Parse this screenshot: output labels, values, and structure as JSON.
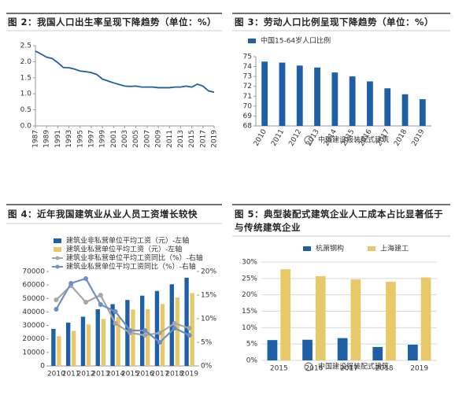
{
  "chart_data": [
    {
      "type": "line",
      "title": "图 2：我国人口出生率呈现下降趋势（单位：%）",
      "x": [
        1987,
        1988,
        1989,
        1990,
        1991,
        1992,
        1993,
        1994,
        1995,
        1996,
        1997,
        1998,
        1999,
        2000,
        2001,
        2002,
        2003,
        2004,
        2005,
        2006,
        2007,
        2008,
        2009,
        2010,
        2011,
        2012,
        2013,
        2014,
        2015,
        2016,
        2017,
        2018,
        2019
      ],
      "series": [
        {
          "color": "#1f5fa6",
          "values": [
            2.33,
            2.24,
            2.14,
            2.1,
            1.97,
            1.82,
            1.81,
            1.77,
            1.71,
            1.69,
            1.66,
            1.6,
            1.46,
            1.4,
            1.34,
            1.29,
            1.24,
            1.23,
            1.24,
            1.21,
            1.21,
            1.21,
            1.19,
            1.19,
            1.19,
            1.21,
            1.21,
            1.24,
            1.21,
            1.3,
            1.24,
            1.09,
            1.05
          ]
        }
      ],
      "xlim": [
        1987,
        2019
      ],
      "xticks": [
        1987,
        1989,
        1991,
        1993,
        1995,
        1997,
        1999,
        2001,
        2003,
        2005,
        2007,
        2009,
        2011,
        2013,
        2015,
        2017,
        2019
      ],
      "ylim": [
        0,
        2.5
      ],
      "yticks": [
        {
          "value": 0,
          "label": "0.0"
        },
        0.5,
        {
          "value": 1,
          "label": "1.0"
        },
        1.5,
        {
          "value": 2,
          "label": "2.0"
        },
        2.5
      ],
      "grid": false
    },
    {
      "type": "bar",
      "title": "图 3：劳动人口比例呈现下降趋势（单位：%）",
      "categories": [
        "2010",
        "2011",
        "2012",
        "2013",
        "2014",
        "2015",
        "2016",
        "2017",
        "2018",
        "2019"
      ],
      "series": [
        {
          "name": "中国15-64岁人口比例",
          "color": "#1f5fa6",
          "values": [
            74.5,
            74.4,
            74.1,
            73.9,
            73.4,
            73.0,
            72.5,
            71.8,
            71.2,
            70.7
          ]
        }
      ],
      "ylim": [
        68,
        75
      ],
      "yticks": [
        68,
        69,
        70,
        71,
        72,
        73,
        74,
        75
      ],
      "grid": false,
      "watermark": "中国建设报装配式建筑"
    },
    {
      "type": "combo",
      "title": "图 4：近年我国建筑业从业人员工资增长较快",
      "categories": [
        "2010",
        "2011",
        "2012",
        "2013",
        "2014",
        "2015",
        "2016",
        "2017",
        "2018",
        "2019"
      ],
      "series": [
        {
          "name": "建筑业非私营单位平均工资（元）-左轴",
          "type": "bar",
          "color": "#1f5fa6",
          "values": [
            27500,
            32100,
            36500,
            42000,
            45800,
            48900,
            52100,
            55600,
            60500,
            65400
          ]
        },
        {
          "name": "建筑业私营单位平均工资（元）-左轴",
          "type": "bar",
          "color": "#e8c96a",
          "values": [
            22100,
            26000,
            30800,
            34800,
            36300,
            41800,
            42100,
            45900,
            50800,
            54000
          ]
        },
        {
          "name": "建筑业非私营单位平均工资同比（%）-右轴",
          "type": "line",
          "axis": "y2",
          "color": "#a6a6a6",
          "values": [
            14,
            17,
            13.5,
            15,
            9,
            7,
            6.5,
            7,
            9,
            8
          ]
        },
        {
          "name": "建筑业私营单位平均工资同比（%）-右轴",
          "type": "line",
          "axis": "y2",
          "color": "#6d8fc7",
          "values": [
            12,
            17.5,
            18.5,
            13,
            11.5,
            7.5,
            7.5,
            5,
            8,
            6.5
          ]
        }
      ],
      "ylim": [
        0,
        70000
      ],
      "yticks": [
        0,
        10000,
        20000,
        30000,
        40000,
        50000,
        60000,
        70000
      ],
      "y2lim": [
        0,
        20
      ],
      "y2ticks": [
        {
          "value": 0,
          "label": "0%"
        },
        {
          "value": 5,
          "label": "5%"
        },
        {
          "value": 10,
          "label": "10%"
        },
        {
          "value": 15,
          "label": "15%"
        },
        {
          "value": 20,
          "label": "20%"
        }
      ],
      "grid": false
    },
    {
      "type": "bar",
      "title": "图 5：典型装配式建筑企业人工成本占比显著低于与传统建筑企业",
      "categories": [
        "2015",
        "2016",
        "2017",
        "2018",
        "2019"
      ],
      "series": [
        {
          "name": "杭萧钢构",
          "color": "#1f5fa6",
          "values": [
            6.2,
            6.3,
            6.8,
            4.1,
            4.8
          ]
        },
        {
          "name": "上海建工",
          "color": "#e8c96a",
          "values": [
            27.8,
            25.7,
            24.7,
            24.0,
            25.3
          ]
        }
      ],
      "ylim": [
        0,
        30
      ],
      "yticks": [
        {
          "value": 0,
          "label": "0%"
        },
        {
          "value": 5,
          "label": "5%"
        },
        {
          "value": 10,
          "label": "10%"
        },
        {
          "value": 15,
          "label": "15%"
        },
        {
          "value": 20,
          "label": "20%"
        },
        {
          "value": 25,
          "label": "25%"
        },
        {
          "value": 30,
          "label": "30%"
        }
      ],
      "grid": true,
      "watermark": "中国建设报装配式建筑"
    }
  ]
}
